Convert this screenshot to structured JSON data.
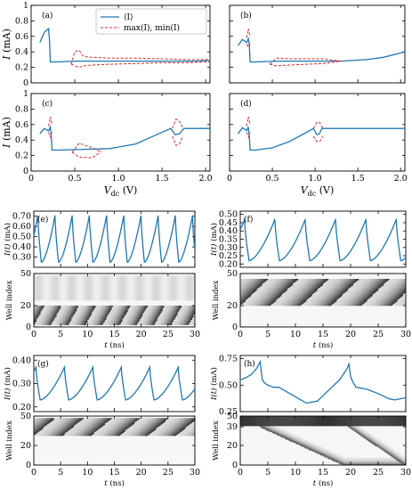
{
  "chart_data": [
    {
      "id": "a",
      "type": "line",
      "panel_label": "(a)",
      "xlim": [
        0,
        2.05
      ],
      "ylim": [
        0,
        1.0
      ],
      "xticks": [
        0,
        0.5,
        1.0,
        1.5,
        2.0
      ],
      "xtick_labels": [
        "0",
        "0.5",
        "1",
        "1.5",
        "2.0"
      ],
      "yticks": [
        0,
        0.2,
        0.4,
        0.6,
        0.8,
        1.0
      ],
      "ytick_labels": [
        "0",
        "0.2",
        "0.4",
        "0.6",
        "0.8",
        "1"
      ],
      "xlabel": "",
      "ylabel": "I (mA)",
      "legend": "top-right",
      "series": [
        {
          "name": "⟨I⟩",
          "style": "solid",
          "color": "#1f77b4",
          "x": [
            0.1,
            0.15,
            0.2,
            0.21,
            0.22,
            0.3,
            0.5,
            0.8,
            1.0,
            1.3,
            1.6,
            1.9,
            2.05
          ],
          "y": [
            0.52,
            0.65,
            0.7,
            0.55,
            0.27,
            0.27,
            0.28,
            0.28,
            0.28,
            0.28,
            0.28,
            0.28,
            0.29
          ]
        },
        {
          "name": "max(I), min(I)",
          "style": "dashed",
          "color": "#d62728",
          "x": [
            0.46,
            0.5,
            0.55,
            0.6,
            0.7,
            0.9,
            1.2,
            1.5,
            1.8,
            2.0,
            2.05
          ],
          "y": [
            0.24,
            0.4,
            0.42,
            0.34,
            0.33,
            0.32,
            0.32,
            0.31,
            0.3,
            0.3,
            0.3
          ],
          "y2": [
            0.24,
            0.22,
            0.2,
            0.22,
            0.23,
            0.24,
            0.25,
            0.26,
            0.26,
            0.27,
            0.27
          ]
        }
      ]
    },
    {
      "id": "b",
      "type": "line",
      "panel_label": "(b)",
      "xlim": [
        0,
        2.05
      ],
      "ylim": [
        0,
        1.0
      ],
      "xticks": [
        0,
        0.5,
        1.0,
        1.5,
        2.0
      ],
      "yticks": [
        0,
        0.2,
        0.4,
        0.6,
        0.8,
        1.0
      ],
      "series": [
        {
          "style": "solid",
          "color": "#1f77b4",
          "x": [
            0.1,
            0.15,
            0.2,
            0.22,
            0.23,
            0.24,
            0.3,
            0.6,
            1.0,
            1.3,
            1.6,
            1.8,
            2.05
          ],
          "y": [
            0.48,
            0.56,
            0.52,
            0.57,
            0.5,
            0.27,
            0.27,
            0.28,
            0.28,
            0.28,
            0.3,
            0.33,
            0.4
          ]
        },
        {
          "style": "dashed",
          "color": "#d62728",
          "x": [
            0.47,
            0.55,
            0.7,
            0.9,
            1.1,
            1.3
          ],
          "y": [
            0.24,
            0.32,
            0.31,
            0.31,
            0.31,
            0.28
          ],
          "y2": [
            0.24,
            0.22,
            0.23,
            0.24,
            0.25,
            0.28
          ]
        },
        {
          "style": "dashed",
          "color": "#d62728",
          "x": [
            0.2,
            0.22,
            0.24
          ],
          "y": [
            0.58,
            0.7,
            0.6
          ],
          "y2": [
            0.5,
            0.46,
            0.5
          ]
        }
      ]
    },
    {
      "id": "c",
      "type": "line",
      "panel_label": "(c)",
      "xlim": [
        0,
        2.05
      ],
      "ylim": [
        0,
        1.0
      ],
      "xticks": [
        0,
        0.5,
        1.0,
        1.5,
        2.0
      ],
      "xtick_labels": [
        "0",
        "0.5",
        "1.0",
        "1.5",
        "2.0"
      ],
      "yticks": [
        0,
        0.2,
        0.4,
        0.6,
        0.8,
        1.0
      ],
      "ytick_labels": [
        "0",
        "0.2",
        "0.4",
        "0.6",
        "0.8",
        "1"
      ],
      "xlabel": "V_dc (V)",
      "ylabel": "I (mA)",
      "series": [
        {
          "style": "solid",
          "color": "#1f77b4",
          "x": [
            0.1,
            0.15,
            0.2,
            0.22,
            0.23,
            0.24,
            0.3,
            0.6,
            0.9,
            1.2,
            1.4,
            1.6,
            1.65,
            1.7,
            1.75,
            2.05
          ],
          "y": [
            0.48,
            0.55,
            0.52,
            0.57,
            0.45,
            0.27,
            0.27,
            0.28,
            0.29,
            0.35,
            0.45,
            0.55,
            0.47,
            0.48,
            0.55,
            0.55
          ]
        },
        {
          "style": "dashed",
          "color": "#d62728",
          "x": [
            0.47,
            0.55,
            0.7,
            0.8
          ],
          "y": [
            0.24,
            0.36,
            0.3,
            0.25
          ],
          "y2": [
            0.24,
            0.18,
            0.17,
            0.25
          ]
        },
        {
          "style": "dashed",
          "color": "#d62728",
          "x": [
            0.2,
            0.22,
            0.24
          ],
          "y": [
            0.58,
            0.7,
            0.6
          ],
          "y2": [
            0.5,
            0.44,
            0.5
          ]
        },
        {
          "style": "dashed",
          "color": "#d62728",
          "x": [
            1.62,
            1.66,
            1.7,
            1.74
          ],
          "y": [
            0.55,
            0.67,
            0.64,
            0.56
          ],
          "y2": [
            0.45,
            0.33,
            0.35,
            0.45
          ]
        }
      ]
    },
    {
      "id": "d",
      "type": "line",
      "panel_label": "(d)",
      "xlim": [
        0,
        2.05
      ],
      "ylim": [
        0,
        1.0
      ],
      "xticks": [
        0,
        0.5,
        1.0,
        1.5,
        2.0
      ],
      "xtick_labels": [
        "0",
        "0.5",
        "1.0",
        "1.5",
        "2.0"
      ],
      "yticks": [
        0,
        0.2,
        0.4,
        0.6,
        0.8,
        1.0
      ],
      "xlabel": "V_dc (V)",
      "series": [
        {
          "style": "solid",
          "color": "#1f77b4",
          "x": [
            0.1,
            0.15,
            0.2,
            0.22,
            0.23,
            0.24,
            0.3,
            0.5,
            0.7,
            0.9,
            0.98,
            1.02,
            1.05,
            1.08,
            1.3,
            1.6,
            2.05
          ],
          "y": [
            0.48,
            0.56,
            0.52,
            0.57,
            0.45,
            0.27,
            0.27,
            0.3,
            0.38,
            0.5,
            0.55,
            0.47,
            0.48,
            0.55,
            0.55,
            0.55,
            0.55
          ]
        },
        {
          "style": "dashed",
          "color": "#d62728",
          "x": [
            0.2,
            0.22,
            0.24
          ],
          "y": [
            0.58,
            0.7,
            0.6
          ],
          "y2": [
            0.5,
            0.44,
            0.5
          ]
        },
        {
          "style": "dashed",
          "color": "#d62728",
          "x": [
            0.98,
            1.02,
            1.06,
            1.09
          ],
          "y": [
            0.55,
            0.63,
            0.62,
            0.55
          ],
          "y2": [
            0.45,
            0.38,
            0.39,
            0.45
          ]
        }
      ]
    },
    {
      "id": "e",
      "type": "line",
      "panel_label": "(e)",
      "xlim": [
        0,
        30
      ],
      "ylim": [
        0.2,
        0.75
      ],
      "yticks": [
        0.3,
        0.4,
        0.5,
        0.6,
        0.7
      ],
      "ytick_labels": [
        "0.30",
        "0.40",
        "0.50",
        "0.60",
        "0.70"
      ],
      "ylabel": "I(t) (mA)",
      "period_ns": 3.2,
      "phase_ns": 1.4,
      "min": 0.25,
      "max": 0.71,
      "skew": 0.8
    },
    {
      "id": "e-map",
      "type": "heatmap",
      "xlim": [
        0,
        30
      ],
      "ylim": [
        0,
        50
      ],
      "xticks": [
        0,
        5,
        10,
        15,
        20,
        25,
        30
      ],
      "yticks": [
        0,
        20,
        50
      ],
      "ytick_labels": [
        "0",
        "20",
        "50"
      ],
      "xlabel": "t (ns)",
      "ylabel": "Well index",
      "bands": [
        {
          "from": 2,
          "to": 20,
          "period_ns": 3.2,
          "slope_ns_per_well": 0.11
        }
      ],
      "faint_band": {
        "from": 25,
        "to": 48
      }
    },
    {
      "id": "f",
      "type": "line",
      "panel_label": "(f)",
      "xlim": [
        0,
        30
      ],
      "ylim": [
        0.18,
        0.52
      ],
      "yticks": [
        0.2,
        0.25,
        0.3,
        0.35,
        0.4,
        0.45,
        0.5
      ],
      "ytick_labels": [
        "0.20",
        "0.25",
        "0.30",
        "0.35",
        "0.40",
        "0.45",
        "0.50"
      ],
      "ylabel": "I(t) (mA)",
      "period_ns": 5.5,
      "phase_ns": 1.6,
      "min": 0.22,
      "max": 0.47,
      "skew": 0.85
    },
    {
      "id": "f-map",
      "type": "heatmap",
      "xlim": [
        0,
        30
      ],
      "ylim": [
        0,
        50
      ],
      "xticks": [
        0,
        5,
        10,
        15,
        20,
        25,
        30
      ],
      "yticks": [
        0,
        20,
        50
      ],
      "ytick_labels": [
        "0",
        "20",
        "50"
      ],
      "xlabel": "t (ns)",
      "ylabel": "Well index",
      "bands": [
        {
          "from": 20,
          "to": 45,
          "period_ns": 5.5,
          "slope_ns_per_well": 0.2
        }
      ]
    },
    {
      "id": "g",
      "type": "line",
      "panel_label": "(g)",
      "xlim": [
        0,
        30
      ],
      "ylim": [
        0.18,
        0.42
      ],
      "yticks": [
        0.2,
        0.3,
        0.4
      ],
      "ytick_labels": [
        "0.20",
        "0.30",
        "0.40"
      ],
      "ylabel": "I(t) (mA)",
      "period_ns": 5.3,
      "phase_ns": 1.2,
      "min": 0.23,
      "max": 0.37,
      "skew": 0.85
    },
    {
      "id": "g-map",
      "type": "heatmap",
      "xlim": [
        0,
        30
      ],
      "ylim": [
        0,
        50
      ],
      "xticks": [
        0,
        5,
        10,
        15,
        20,
        25,
        30
      ],
      "yticks": [
        0,
        20,
        50
      ],
      "ytick_labels": [
        "0",
        "20",
        "50"
      ],
      "xlabel": "t (ns)",
      "ylabel": "Well index",
      "bands": [
        {
          "from": 30,
          "to": 48,
          "period_ns": 5.3,
          "slope_ns_per_well": 0.22
        }
      ]
    },
    {
      "id": "h",
      "type": "line",
      "panel_label": "(h)",
      "xlim": [
        0,
        30
      ],
      "ylim": [
        0.25,
        0.78
      ],
      "yticks": [
        0.25,
        0.5,
        0.75
      ],
      "ytick_labels": [
        "0.25",
        "0.50",
        "0.75"
      ],
      "ylabel": "I(t) (mA)",
      "x": [
        0,
        1,
        2,
        3,
        3.6,
        4,
        4.4,
        5,
        6,
        7,
        9,
        11,
        12,
        14,
        16,
        18,
        19.3,
        19.7,
        20,
        20.5,
        21,
        23,
        25,
        27,
        28,
        30
      ],
      "y": [
        0.55,
        0.57,
        0.6,
        0.66,
        0.72,
        0.55,
        0.52,
        0.5,
        0.48,
        0.48,
        0.42,
        0.36,
        0.33,
        0.35,
        0.45,
        0.55,
        0.65,
        0.7,
        0.58,
        0.52,
        0.48,
        0.46,
        0.42,
        0.37,
        0.36,
        0.38
      ]
    },
    {
      "id": "h-map",
      "type": "heatmap",
      "xlim": [
        0,
        30
      ],
      "ylim": [
        0,
        50
      ],
      "xticks": [
        0,
        5,
        10,
        15,
        20,
        25,
        30
      ],
      "yticks": [
        0,
        20,
        39,
        50
      ],
      "ytick_labels": [
        "0",
        "20",
        "39",
        "50"
      ],
      "xlabel": "t (ns)",
      "ylabel": "Well index",
      "top_band": {
        "from": 40,
        "to": 50
      },
      "fronts": [
        {
          "t_start": 3.5,
          "t_end": 19.0
        },
        {
          "t_start": 19.5,
          "t_end": 30.0
        }
      ]
    }
  ]
}
